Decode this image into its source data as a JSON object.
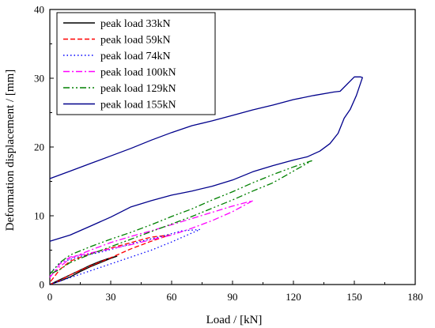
{
  "chart_data": {
    "type": "line",
    "title": "",
    "xlabel": "Load / [kN]",
    "ylabel": "Deformation displacement / [mm]",
    "xlim": [
      0,
      180
    ],
    "ylim": [
      0,
      40
    ],
    "xticks": [
      0,
      30,
      60,
      90,
      120,
      150,
      180
    ],
    "yticks": [
      0,
      10,
      20,
      30,
      40
    ],
    "xtick_labels": [
      "0",
      "30",
      "60",
      "90",
      "120",
      "150",
      "180"
    ],
    "ytick_labels": [
      "0",
      "10",
      "20",
      "30",
      "40"
    ],
    "grid": false,
    "legend_position": "top-left",
    "series": [
      {
        "name": "peak load 33kN",
        "color": "#000000",
        "dash": "solid",
        "x": [
          0,
          5,
          10,
          15,
          20,
          25,
          30,
          33,
          30,
          25,
          20,
          15,
          10,
          5,
          0
        ],
        "y": [
          0,
          0.5,
          1.1,
          1.9,
          2.6,
          3.2,
          3.8,
          4.1,
          3.9,
          3.4,
          2.8,
          2.1,
          1.4,
          0.7,
          0
        ]
      },
      {
        "name": "peak load 59kN",
        "color": "#ff0000",
        "dash": "dashed",
        "x": [
          0,
          5,
          10,
          20,
          30,
          40,
          50,
          59,
          50,
          40,
          30,
          20,
          10,
          5,
          0
        ],
        "y": [
          0,
          0.6,
          1.4,
          2.7,
          3.9,
          5.2,
          6.3,
          7.2,
          6.9,
          6.1,
          5.3,
          4.5,
          3.4,
          2.2,
          0.3
        ]
      },
      {
        "name": "peak load 74kN",
        "color": "#0000ff",
        "dash": "dotted",
        "x": [
          0,
          5,
          10,
          20,
          30,
          40,
          50,
          60,
          70,
          74,
          65,
          55,
          45,
          35,
          25,
          15,
          5,
          0
        ],
        "y": [
          0,
          0.5,
          1.0,
          2.0,
          3.0,
          4.0,
          5.0,
          6.2,
          7.5,
          8.0,
          7.8,
          7.0,
          6.3,
          5.5,
          4.7,
          4.1,
          3.2,
          1.6
        ]
      },
      {
        "name": "peak load 100kN",
        "color": "#ff00ff",
        "dash": "dashdot",
        "x": [
          0,
          5,
          10,
          20,
          30,
          40,
          50,
          60,
          70,
          80,
          90,
          100,
          90,
          80,
          70,
          60,
          50,
          40,
          30,
          20,
          10,
          5,
          0
        ],
        "y": [
          1.0,
          3.0,
          4.0,
          4.6,
          5.2,
          5.8,
          6.5,
          7.2,
          8.2,
          9.3,
          10.6,
          12.2,
          11.4,
          10.5,
          9.6,
          8.7,
          7.8,
          7.0,
          6.1,
          5.0,
          3.8,
          2.6,
          1.2
        ]
      },
      {
        "name": "peak load 129kN",
        "color": "#008000",
        "dash": "dashdotdot",
        "x": [
          0,
          5,
          10,
          20,
          30,
          40,
          50,
          60,
          70,
          80,
          90,
          100,
          110,
          120,
          129,
          120,
          110,
          100,
          90,
          80,
          70,
          60,
          50,
          40,
          30,
          20,
          10,
          5,
          0
        ],
        "y": [
          1.5,
          3.2,
          4.3,
          5.5,
          6.6,
          7.6,
          8.7,
          9.9,
          11.0,
          12.3,
          13.5,
          14.8,
          16.0,
          17.1,
          18.0,
          16.5,
          14.8,
          13.6,
          12.3,
          11.1,
          9.9,
          8.8,
          7.7,
          6.6,
          5.5,
          4.4,
          3.2,
          2.2,
          1.5
        ]
      },
      {
        "name": "peak load 155kN",
        "color": "#00008b",
        "dash": "solid",
        "x": [
          0,
          10,
          20,
          30,
          40,
          50,
          60,
          70,
          80,
          90,
          100,
          110,
          120,
          130,
          140,
          143,
          150,
          153,
          154,
          151,
          148,
          145,
          142,
          138,
          133,
          127,
          120,
          110,
          100,
          90,
          80,
          70,
          60,
          50,
          40,
          30,
          20,
          10,
          0
        ],
        "y": [
          15.4,
          16.5,
          17.6,
          18.7,
          19.8,
          21.0,
          22.1,
          23.1,
          23.8,
          24.6,
          25.4,
          26.1,
          26.9,
          27.5,
          28.0,
          28.1,
          30.2,
          30.2,
          30.1,
          27.5,
          25.5,
          24.2,
          22.0,
          20.5,
          19.4,
          18.6,
          18.1,
          17.3,
          16.4,
          15.2,
          14.3,
          13.6,
          13.0,
          12.2,
          11.3,
          9.8,
          8.5,
          7.2,
          6.3
        ]
      }
    ]
  }
}
